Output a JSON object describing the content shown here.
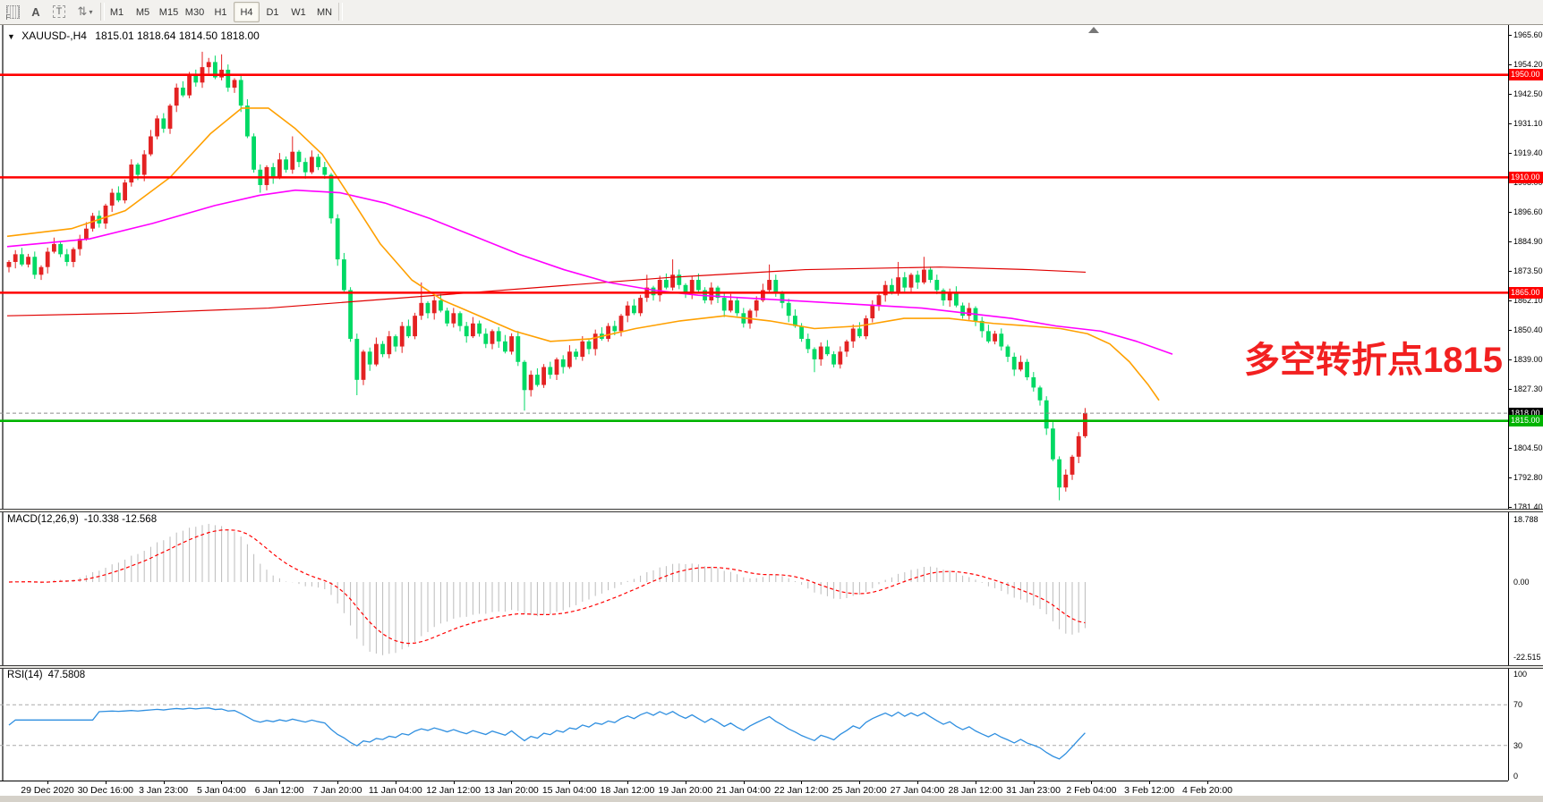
{
  "toolbar": {
    "icons": [
      {
        "name": "grid-f-icon",
        "glyph": "F"
      },
      {
        "name": "font-a-icon",
        "glyph": "A"
      },
      {
        "name": "text-label-icon",
        "glyph": "T"
      },
      {
        "name": "cycle-arrows-icon",
        "glyph": "⇅"
      }
    ],
    "timeframes": [
      {
        "label": "M1"
      },
      {
        "label": "M5"
      },
      {
        "label": "M15"
      },
      {
        "label": "M30"
      },
      {
        "label": "H1"
      },
      {
        "label": "H4",
        "active": true
      },
      {
        "label": "D1"
      },
      {
        "label": "W1"
      },
      {
        "label": "MN"
      }
    ]
  },
  "chart": {
    "symbol_line": "XAUUSD-,H4",
    "quote_line": "1815.01 1818.64 1814.50 1818.00",
    "annotation": {
      "text": "多空转折点1815",
      "color": "#f22020"
    }
  },
  "chart_data": {
    "type": "candlestick",
    "symbol": "XAUUSD-",
    "timeframe": "H4",
    "quote": {
      "open": "1815.01",
      "high": "1818.64",
      "low": "1814.50",
      "close": "1818.00"
    },
    "colors": {
      "up": "#e32222",
      "down": "#00d964",
      "ma_fast": "#ffa000",
      "ma_mid": "#ff00ff",
      "ma_slow": "#e00000",
      "macd_hist": "#bbbbbb",
      "macd_signal": "#ff0000",
      "rsi_line": "#2f8fe0"
    },
    "y_axis": {
      "top": 1965.6,
      "bottom": 1781.4,
      "ticks": [
        1965.6,
        1954.2,
        1942.5,
        1931.1,
        1919.4,
        1908.0,
        1896.6,
        1884.9,
        1873.5,
        1862.1,
        1850.4,
        1839.0,
        1827.3,
        1804.5,
        1792.8,
        1781.4
      ],
      "badges": [
        {
          "text": "1950.00",
          "price": 1950,
          "bg": "#ff0000"
        },
        {
          "text": "1910.00",
          "price": 1910,
          "bg": "#ff0000"
        },
        {
          "text": "1865.00",
          "price": 1865,
          "bg": "#ff0000"
        },
        {
          "text": "1818.00",
          "price": 1818,
          "bg": "#000000"
        },
        {
          "text": "1815.00",
          "price": 1815,
          "bg": "#00b400"
        }
      ]
    },
    "x_dates": [
      "29 Dec 2020",
      "30 Dec 16:00",
      "3 Jan 23:00",
      "5 Jan 04:00",
      "6 Jan 12:00",
      "7 Jan 20:00",
      "11 Jan 04:00",
      "12 Jan 12:00",
      "13 Jan 20:00",
      "15 Jan 04:00",
      "18 Jan 12:00",
      "19 Jan 20:00",
      "21 Jan 04:00",
      "22 Jan 12:00",
      "25 Jan 20:00",
      "27 Jan 04:00",
      "28 Jan 12:00",
      "31 Jan 23:00",
      "2 Feb 04:00",
      "3 Feb 12:00",
      "4 Feb 20:00"
    ],
    "first_open": 1875,
    "closes": [
      1877,
      1880,
      1876,
      1879,
      1872,
      1875,
      1881,
      1884,
      1880,
      1877,
      1882,
      1886,
      1890,
      1895,
      1892,
      1899,
      1904,
      1901,
      1908,
      1915,
      1911,
      1919,
      1926,
      1933,
      1929,
      1938,
      1945,
      1942,
      1950,
      1947,
      1953,
      1955,
      1949,
      1952,
      1945,
      1948,
      1938,
      1926,
      1913,
      1907,
      1914,
      1910,
      1917,
      1913,
      1920,
      1916,
      1912,
      1918,
      1914,
      1911,
      1894,
      1878,
      1866,
      1847,
      1831,
      1842,
      1837,
      1845,
      1841,
      1848,
      1844,
      1852,
      1848,
      1856,
      1861,
      1857,
      1862,
      1858,
      1853,
      1857,
      1852,
      1848,
      1853,
      1849,
      1845,
      1850,
      1846,
      1842,
      1848,
      1838,
      1827,
      1833,
      1829,
      1836,
      1833,
      1839,
      1836,
      1842,
      1840,
      1846,
      1843,
      1849,
      1847,
      1852,
      1850,
      1856,
      1860,
      1857,
      1863,
      1867,
      1864,
      1870,
      1867,
      1872,
      1868,
      1865,
      1870,
      1866,
      1862,
      1867,
      1863,
      1858,
      1862,
      1857,
      1853,
      1858,
      1862,
      1866,
      1870,
      1865,
      1861,
      1856,
      1852,
      1847,
      1843,
      1839,
      1844,
      1841,
      1837,
      1842,
      1846,
      1851,
      1848,
      1855,
      1860,
      1864,
      1868,
      1865,
      1871,
      1867,
      1872,
      1869,
      1874,
      1870,
      1866,
      1862,
      1865,
      1860,
      1856,
      1859,
      1854,
      1850,
      1846,
      1849,
      1844,
      1840,
      1835,
      1838,
      1832,
      1828,
      1823,
      1812,
      1800,
      1789,
      1794,
      1801,
      1809,
      1818
    ],
    "high_overrides": {
      "30": 1959,
      "33": 1958,
      "44": 1926,
      "64": 1869,
      "99": 1872,
      "103": 1878,
      "118": 1876,
      "138": 1877,
      "142": 1879,
      "167": 1820
    },
    "low_overrides": {
      "39": 1904,
      "54": 1825,
      "80": 1819,
      "125": 1834,
      "163": 1784
    },
    "hlines": [
      {
        "price": 1950,
        "color": "#ff0000",
        "width": 2.6
      },
      {
        "price": 1910,
        "color": "#ff0000",
        "width": 2.6
      },
      {
        "price": 1865,
        "color": "#ff0000",
        "width": 2.6
      },
      {
        "price": 1815,
        "color": "#00b400",
        "width": 2.6
      },
      {
        "price": 1818,
        "color": "#8a8a8a",
        "width": 1,
        "dash": "4 3"
      }
    ],
    "ma_orange": [
      [
        8,
        1887
      ],
      [
        80,
        1890
      ],
      [
        140,
        1897
      ],
      [
        190,
        1910
      ],
      [
        235,
        1927
      ],
      [
        270,
        1937
      ],
      [
        300,
        1937
      ],
      [
        330,
        1929
      ],
      [
        360,
        1919
      ],
      [
        390,
        1903
      ],
      [
        425,
        1884
      ],
      [
        460,
        1870
      ],
      [
        495,
        1862
      ],
      [
        535,
        1856
      ],
      [
        575,
        1850
      ],
      [
        615,
        1846
      ],
      [
        660,
        1847
      ],
      [
        710,
        1851
      ],
      [
        760,
        1854
      ],
      [
        810,
        1856
      ],
      [
        860,
        1854
      ],
      [
        910,
        1851
      ],
      [
        960,
        1852
      ],
      [
        1010,
        1855
      ],
      [
        1060,
        1855
      ],
      [
        1110,
        1853
      ],
      [
        1150,
        1852
      ],
      [
        1185,
        1851
      ],
      [
        1215,
        1849
      ],
      [
        1240,
        1845
      ],
      [
        1262,
        1838
      ],
      [
        1283,
        1829
      ],
      [
        1295,
        1823
      ]
    ],
    "ma_magenta": [
      [
        8,
        1883
      ],
      [
        100,
        1886
      ],
      [
        170,
        1892
      ],
      [
        240,
        1899
      ],
      [
        290,
        1903
      ],
      [
        330,
        1905
      ],
      [
        380,
        1904
      ],
      [
        430,
        1900
      ],
      [
        480,
        1894
      ],
      [
        530,
        1887
      ],
      [
        580,
        1880
      ],
      [
        630,
        1874
      ],
      [
        680,
        1869
      ],
      [
        730,
        1866
      ],
      [
        780,
        1864
      ],
      [
        830,
        1863
      ],
      [
        880,
        1862
      ],
      [
        930,
        1861
      ],
      [
        980,
        1860
      ],
      [
        1030,
        1859
      ],
      [
        1080,
        1857
      ],
      [
        1130,
        1855
      ],
      [
        1180,
        1852
      ],
      [
        1230,
        1850
      ],
      [
        1270,
        1846
      ],
      [
        1310,
        1841
      ]
    ],
    "ma_red": [
      [
        8,
        1856
      ],
      [
        150,
        1857
      ],
      [
        300,
        1859
      ],
      [
        450,
        1863
      ],
      [
        600,
        1867
      ],
      [
        750,
        1871
      ],
      [
        900,
        1874
      ],
      [
        1050,
        1875
      ],
      [
        1150,
        1874
      ],
      [
        1213,
        1873
      ]
    ],
    "macd": {
      "label": "MACD(12,26,9)",
      "values": "-10.338 -12.568",
      "fast": 12,
      "slow": 26,
      "signal": 9,
      "scale": [
        {
          "text": "18.788",
          "v": 18.788
        },
        {
          "text": "0.00",
          "v": 0
        },
        {
          "text": "-22.515",
          "v": -22.515
        }
      ],
      "range": {
        "max": 18.788,
        "min": -22.515
      }
    },
    "rsi": {
      "label": "RSI(14)",
      "value": "47.5808",
      "period": 14,
      "scale": [
        {
          "text": "100",
          "v": 100
        },
        {
          "text": "70",
          "v": 70
        },
        {
          "text": "30",
          "v": 30
        },
        {
          "text": "0",
          "v": 0
        }
      ],
      "levels": [
        70,
        30
      ]
    }
  }
}
